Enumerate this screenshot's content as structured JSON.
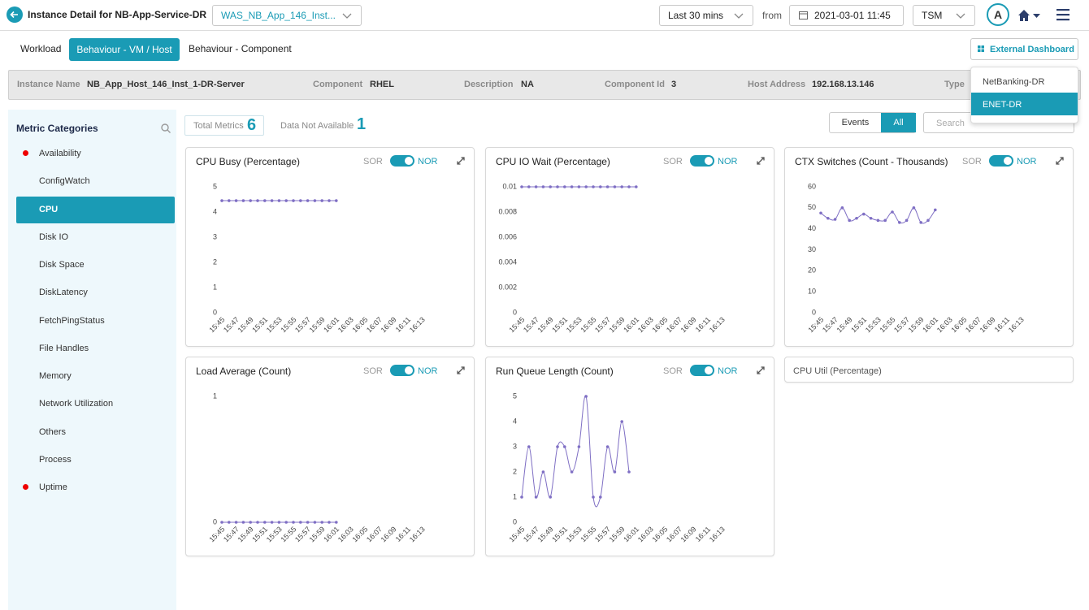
{
  "header": {
    "title": "Instance Detail for NB-App-Service-DR",
    "service_select": "WAS_NB_App_146_Inst...",
    "time_range": "Last 30 mins",
    "from_label": "from",
    "date": "2021-03-01 11:45",
    "timezone": "TSM",
    "avatar": "A"
  },
  "tabs": [
    "Workload",
    "Behaviour - VM / Host",
    "Behaviour - Component"
  ],
  "external_dashboard": {
    "label": "External Dashboard",
    "options": [
      "NetBanking-DR",
      "ENET-DR"
    ]
  },
  "info": [
    {
      "label": "Instance Name",
      "value": "NB_App_Host_146_Inst_1-DR-Server"
    },
    {
      "label": "Component",
      "value": "RHEL"
    },
    {
      "label": "Description",
      "value": "NA"
    },
    {
      "label": "Component Id",
      "value": "3"
    },
    {
      "label": "Host Address",
      "value": "192.168.13.146"
    },
    {
      "label": "Type"
    }
  ],
  "sidebar": {
    "title": "Metric Categories",
    "items": [
      {
        "label": "Availability",
        "alert": true
      },
      {
        "label": "ConfigWatch"
      },
      {
        "label": "CPU",
        "active": true
      },
      {
        "label": "Disk IO"
      },
      {
        "label": "Disk Space"
      },
      {
        "label": "DiskLatency"
      },
      {
        "label": "FetchPingStatus"
      },
      {
        "label": "File Handles"
      },
      {
        "label": "Memory"
      },
      {
        "label": "Network Utilization"
      },
      {
        "label": "Others"
      },
      {
        "label": "Process"
      },
      {
        "label": "Uptime",
        "alert": true
      }
    ]
  },
  "summary": {
    "total_label": "Total Metrics",
    "total": "6",
    "na_label": "Data Not Available",
    "na": "1"
  },
  "filters": {
    "options": [
      "Events",
      "All"
    ],
    "search": "Search"
  },
  "empty_panel": "CPU Util (Percentage)",
  "chart_data": [
    {
      "type": "line",
      "title": "CPU Busy (Percentage)",
      "toggle": [
        "SOR",
        "NOR"
      ],
      "color": "#7f6fc4",
      "categories": [
        "15:45",
        null,
        "15:47",
        null,
        "15:49",
        null,
        "15:51",
        null,
        "15:53",
        null,
        "15:55",
        null,
        "15:57",
        null,
        "15:59",
        null,
        "16:01",
        null,
        "16:03",
        null,
        "16:05",
        null,
        "16:07",
        null,
        "16:09",
        null,
        "16:11",
        null,
        "16:13"
      ],
      "values": [
        4.45,
        4.45,
        4.45,
        4.45,
        4.45,
        4.45,
        4.45,
        4.45,
        4.45,
        4.45,
        4.45,
        4.45,
        4.45,
        4.45,
        4.45,
        4.45,
        4.45,
        null,
        null,
        null,
        null,
        null,
        null,
        null,
        null,
        null,
        null,
        null,
        null
      ],
      "ylim": [
        0,
        5
      ],
      "yticks": [
        0,
        1,
        2,
        3,
        4,
        5
      ]
    },
    {
      "type": "line",
      "title": "CPU IO Wait (Percentage)",
      "toggle": [
        "SOR",
        "NOR"
      ],
      "color": "#7f6fc4",
      "categories": [
        "15:45",
        null,
        "15:47",
        null,
        "15:49",
        null,
        "15:51",
        null,
        "15:53",
        null,
        "15:55",
        null,
        "15:57",
        null,
        "15:59",
        null,
        "16:01",
        null,
        "16:03",
        null,
        "16:05",
        null,
        "16:07",
        null,
        "16:09",
        null,
        "16:11",
        null,
        "16:13"
      ],
      "values": [
        0.01,
        0.01,
        0.01,
        0.01,
        0.01,
        0.01,
        0.01,
        0.01,
        0.01,
        0.01,
        0.01,
        0.01,
        0.01,
        0.01,
        0.01,
        0.01,
        0.01,
        null,
        null,
        null,
        null,
        null,
        null,
        null,
        null,
        null,
        null,
        null,
        null
      ],
      "ylim": [
        0,
        0.01
      ],
      "yticks": [
        0,
        0.002,
        0.004,
        0.006,
        0.008,
        0.01
      ]
    },
    {
      "type": "line",
      "title": "CTX Switches (Count - Thousands)",
      "toggle": [
        "SOR",
        "NOR"
      ],
      "color": "#7f6fc4",
      "categories": [
        "15:45",
        null,
        "15:47",
        null,
        "15:49",
        null,
        "15:51",
        null,
        "15:53",
        null,
        "15:55",
        null,
        "15:57",
        null,
        "15:59",
        null,
        "16:01",
        null,
        "16:03",
        null,
        "16:05",
        null,
        "16:07",
        null,
        "16:09",
        null,
        "16:11",
        null,
        "16:13"
      ],
      "values": [
        47.5,
        45,
        44.5,
        50,
        44,
        45,
        47,
        45,
        44,
        44,
        48,
        43,
        44,
        50,
        43,
        44,
        49,
        null,
        null,
        null,
        null,
        null,
        null,
        null,
        null,
        null,
        null,
        null,
        null
      ],
      "ylim": [
        0,
        60
      ],
      "yticks": [
        0,
        10,
        20,
        30,
        40,
        50,
        60
      ]
    },
    {
      "type": "line",
      "title": "Load Average (Count)",
      "toggle": [
        "SOR",
        "NOR"
      ],
      "color": "#7f6fc4",
      "categories": [
        "15:45",
        null,
        "15:47",
        null,
        "15:49",
        null,
        "15:51",
        null,
        "15:53",
        null,
        "15:55",
        null,
        "15:57",
        null,
        "15:59",
        null,
        "16:01",
        null,
        "16:03",
        null,
        "16:05",
        null,
        "16:07",
        null,
        "16:09",
        null,
        "16:11",
        null,
        "16:13"
      ],
      "values": [
        0,
        0,
        0,
        0,
        0,
        0,
        0,
        0,
        0,
        0,
        0,
        0,
        0,
        0,
        0,
        0,
        0,
        null,
        null,
        null,
        null,
        null,
        null,
        null,
        null,
        null,
        null,
        null,
        null
      ],
      "ylim": [
        0,
        1
      ],
      "yticks": [
        0,
        1
      ]
    },
    {
      "type": "line",
      "title": "Run Queue Length (Count)",
      "toggle": [
        "SOR",
        "NOR"
      ],
      "color": "#7f6fc4",
      "categories": [
        "15:45",
        null,
        "15:47",
        null,
        "15:49",
        null,
        "15:51",
        null,
        "15:53",
        null,
        "15:55",
        null,
        "15:57",
        null,
        "15:59",
        null,
        "16:01",
        null,
        "16:03",
        null,
        "16:05",
        null,
        "16:07",
        null,
        "16:09",
        null,
        "16:11",
        null,
        "16:13"
      ],
      "values": [
        1,
        3,
        1,
        2,
        1,
        3,
        3,
        2,
        3,
        5,
        1,
        1,
        3,
        2,
        4,
        2,
        null,
        null,
        null,
        null,
        null,
        null,
        null,
        null,
        null,
        null,
        null,
        null,
        null
      ],
      "ylim": [
        0,
        5
      ],
      "yticks": [
        0,
        1,
        2,
        3,
        4,
        5
      ]
    }
  ]
}
